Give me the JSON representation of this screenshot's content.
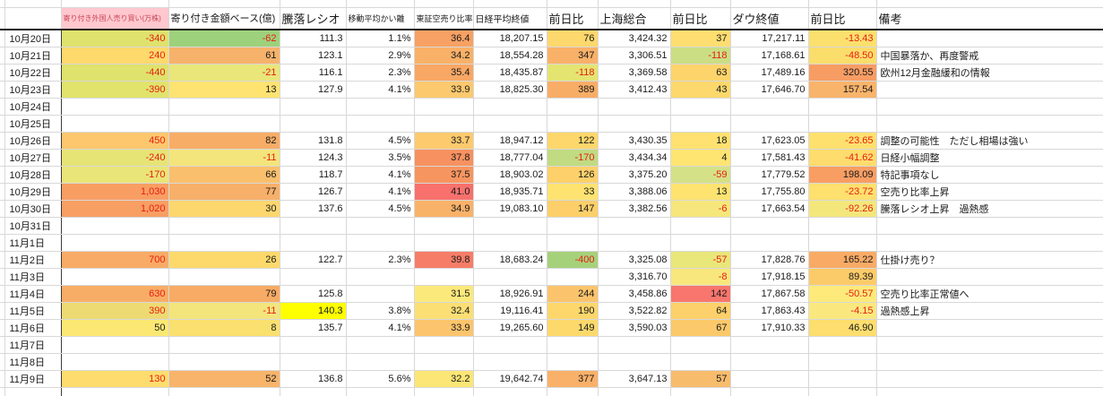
{
  "app": "spreadsheet-market-diary",
  "headers": {
    "foreign": "寄り付き外国人売り買い(万株)",
    "amount": "寄り付き金額ベース(億)",
    "ratio": "騰落レシオ",
    "ma": "移動平均かい離",
    "short": "東証空売り比率",
    "nikkei": "日経平均終値",
    "n_chg": "前日比",
    "shanghai": "上海総合",
    "s_chg": "前日比",
    "dow": "ダウ終値",
    "d_chg": "前日比",
    "remark": "備考"
  },
  "header_style": {
    "foreign_bg": "#ffc7ce",
    "foreign_fg": "#c84655"
  },
  "colors": {
    "grid": "#d8d8d8",
    "negative_text": "#e81d12",
    "highlight_yellow": "#ffff00"
  },
  "rows": [
    {
      "date": "10月20日",
      "cells": {
        "foreign": {
          "v": "-340",
          "bg": "#dfe26c",
          "fg": "#e81d12"
        },
        "amount": {
          "v": "-62",
          "bg": "#9ed17b",
          "fg": "#e81d12"
        },
        "ratio": {
          "v": "111.3"
        },
        "ma": {
          "v": "1.1%"
        },
        "short": {
          "v": "36.4",
          "bg": "#f8a164"
        },
        "nikkei": {
          "v": "18,207.15"
        },
        "n_chg": {
          "v": "76",
          "bg": "#fdd86c"
        },
        "shanghai": {
          "v": "3,424.32"
        },
        "s_chg": {
          "v": "37",
          "bg": "#fede70"
        },
        "dow": {
          "v": "17,217.11"
        },
        "d_chg": {
          "v": "-13.43",
          "bg": "#fbe06e",
          "fg": "#e81d12"
        },
        "remark": {
          "v": ""
        }
      }
    },
    {
      "date": "10月21日",
      "cells": {
        "foreign": {
          "v": "240",
          "bg": "#fed96c",
          "fg": "#e81d12"
        },
        "amount": {
          "v": "61",
          "bg": "#f6b26b"
        },
        "ratio": {
          "v": "123.1"
        },
        "ma": {
          "v": "2.9%"
        },
        "short": {
          "v": "34.2",
          "bg": "#f9b168"
        },
        "nikkei": {
          "v": "18,554.28"
        },
        "n_chg": {
          "v": "347",
          "bg": "#f9b169"
        },
        "shanghai": {
          "v": "3,306.51"
        },
        "s_chg": {
          "v": "-118",
          "bg": "#cbde84",
          "fg": "#e81d12"
        },
        "dow": {
          "v": "17,168.61"
        },
        "d_chg": {
          "v": "-48.50",
          "bg": "#fbdd6c",
          "fg": "#e81d12"
        },
        "remark": {
          "v": "中国暴落か、再度警戒"
        }
      }
    },
    {
      "date": "10月22日",
      "cells": {
        "foreign": {
          "v": "-440",
          "bg": "#dfe26c",
          "fg": "#e81d12"
        },
        "amount": {
          "v": "-21",
          "bg": "#e9e67a",
          "fg": "#e81d12"
        },
        "ratio": {
          "v": "116.1"
        },
        "ma": {
          "v": "2.3%"
        },
        "short": {
          "v": "35.4",
          "bg": "#f8a765"
        },
        "nikkei": {
          "v": "18,435.87"
        },
        "n_chg": {
          "v": "-118",
          "bg": "#e4e471",
          "fg": "#e81d12"
        },
        "shanghai": {
          "v": "3,369.58"
        },
        "s_chg": {
          "v": "63",
          "bg": "#fdd46b"
        },
        "dow": {
          "v": "17,489.16"
        },
        "d_chg": {
          "v": "320.55",
          "bg": "#f79d64"
        },
        "remark": {
          "v": "欧州12月金融緩和の情報"
        }
      }
    },
    {
      "date": "10月23日",
      "cells": {
        "foreign": {
          "v": "-390",
          "bg": "#e1e36d",
          "fg": "#e81d12"
        },
        "amount": {
          "v": "13",
          "bg": "#fee371"
        },
        "ratio": {
          "v": "127.9"
        },
        "ma": {
          "v": "4.1%"
        },
        "short": {
          "v": "33.9",
          "bg": "#fcc96e"
        },
        "nikkei": {
          "v": "18,825.30"
        },
        "n_chg": {
          "v": "389",
          "bg": "#f8ad67"
        },
        "shanghai": {
          "v": "3,412.43"
        },
        "s_chg": {
          "v": "43",
          "bg": "#fdd86c"
        },
        "dow": {
          "v": "17,646.70"
        },
        "d_chg": {
          "v": "157.54",
          "bg": "#f9b46b"
        },
        "remark": {
          "v": ""
        }
      }
    },
    {
      "date": "10月24日"
    },
    {
      "date": "10月25日"
    },
    {
      "date": "10月26日",
      "cells": {
        "foreign": {
          "v": "450",
          "bg": "#fdc76d",
          "fg": "#e81d12"
        },
        "amount": {
          "v": "82",
          "bg": "#f7ad66"
        },
        "ratio": {
          "v": "131.8"
        },
        "ma": {
          "v": "4.5%"
        },
        "short": {
          "v": "33.7",
          "bg": "#fdca6e"
        },
        "nikkei": {
          "v": "18,947.12"
        },
        "n_chg": {
          "v": "122",
          "bg": "#fdd76b"
        },
        "shanghai": {
          "v": "3,430.35"
        },
        "s_chg": {
          "v": "18",
          "bg": "#fee170"
        },
        "dow": {
          "v": "17,623.05"
        },
        "d_chg": {
          "v": "-23.65",
          "bg": "#fee06e",
          "fg": "#e81d12"
        },
        "remark": {
          "v": "調整の可能性　ただし相場は強い"
        }
      }
    },
    {
      "date": "10月27日",
      "cells": {
        "foreign": {
          "v": "-240",
          "bg": "#e7e476",
          "fg": "#e81d12"
        },
        "amount": {
          "v": "-11",
          "bg": "#f3e57b",
          "fg": "#e81d12"
        },
        "ratio": {
          "v": "124.3"
        },
        "ma": {
          "v": "3.5%"
        },
        "short": {
          "v": "37.8",
          "bg": "#f79160"
        },
        "nikkei": {
          "v": "18,777.04"
        },
        "n_chg": {
          "v": "-170",
          "bg": "#c0db81",
          "fg": "#e81d12"
        },
        "shanghai": {
          "v": "3,434.34"
        },
        "s_chg": {
          "v": "4",
          "bg": "#fee572"
        },
        "dow": {
          "v": "17,581.43"
        },
        "d_chg": {
          "v": "-41.62",
          "bg": "#fedc6d",
          "fg": "#e81d12"
        },
        "remark": {
          "v": "日経小幅調整"
        }
      }
    },
    {
      "date": "10月28日",
      "cells": {
        "foreign": {
          "v": "-170",
          "bg": "#eae577",
          "fg": "#e81d12"
        },
        "amount": {
          "v": "66",
          "bg": "#fabf6c"
        },
        "ratio": {
          "v": "118.7"
        },
        "ma": {
          "v": "4.1%"
        },
        "short": {
          "v": "37.5",
          "bg": "#f79560"
        },
        "nikkei": {
          "v": "18,903.02"
        },
        "n_chg": {
          "v": "126",
          "bg": "#fdd06a"
        },
        "shanghai": {
          "v": "3,375.20"
        },
        "s_chg": {
          "v": "-59",
          "bg": "#d5e187",
          "fg": "#e81d12"
        },
        "dow": {
          "v": "17,779.52"
        },
        "d_chg": {
          "v": "198.09",
          "bg": "#f89e63"
        },
        "remark": {
          "v": "特記事項なし"
        }
      }
    },
    {
      "date": "10月29日",
      "cells": {
        "foreign": {
          "v": "1,030",
          "bg": "#f89e63",
          "fg": "#e81d12"
        },
        "amount": {
          "v": "77",
          "bg": "#f7b069"
        },
        "ratio": {
          "v": "126.7"
        },
        "ma": {
          "v": "4.1%"
        },
        "short": {
          "v": "41.0",
          "bg": "#f8716c"
        },
        "nikkei": {
          "v": "18,935.71"
        },
        "n_chg": {
          "v": "33",
          "bg": "#fee371"
        },
        "shanghai": {
          "v": "3,388.06"
        },
        "s_chg": {
          "v": "13",
          "bg": "#fee371"
        },
        "dow": {
          "v": "17,755.80"
        },
        "d_chg": {
          "v": "-23.72",
          "bg": "#fee06e",
          "fg": "#e81d12"
        },
        "remark": {
          "v": "空売り比率上昇"
        }
      }
    },
    {
      "date": "10月30日",
      "cells": {
        "foreign": {
          "v": "1,020",
          "bg": "#f89f64",
          "fg": "#e81d12"
        },
        "amount": {
          "v": "30",
          "bg": "#fcd76e"
        },
        "ratio": {
          "v": "137.6"
        },
        "ma": {
          "v": "4.5%"
        },
        "short": {
          "v": "34.9",
          "bg": "#f9b269"
        },
        "nikkei": {
          "v": "19,083.10"
        },
        "n_chg": {
          "v": "147",
          "bg": "#fccf6a"
        },
        "shanghai": {
          "v": "3,382.56"
        },
        "s_chg": {
          "v": "-6",
          "bg": "#f6e77c",
          "fg": "#e81d12"
        },
        "dow": {
          "v": "17,663.54"
        },
        "d_chg": {
          "v": "-92.26",
          "bg": "#f3e77c",
          "fg": "#e81d12"
        },
        "remark": {
          "v": "騰落レシオ上昇　過熱感"
        }
      }
    },
    {
      "date": "10月31日"
    },
    {
      "date": "11月1日"
    },
    {
      "date": "11月2日",
      "cells": {
        "foreign": {
          "v": "700",
          "bg": "#f8ab66",
          "fg": "#e81d12"
        },
        "amount": {
          "v": "26",
          "bg": "#fdd96b"
        },
        "ratio": {
          "v": "122.7"
        },
        "ma": {
          "v": "2.3%"
        },
        "short": {
          "v": "39.8",
          "bg": "#f67d68"
        },
        "nikkei": {
          "v": "18,683.24"
        },
        "n_chg": {
          "v": "-400",
          "bg": "#a6d17b",
          "fg": "#e81d12"
        },
        "shanghai": {
          "v": "3,325.08"
        },
        "s_chg": {
          "v": "-57",
          "bg": "#e9e67a",
          "fg": "#e81d12"
        },
        "dow": {
          "v": "17,828.76"
        },
        "d_chg": {
          "v": "165.22",
          "bg": "#f9ab66"
        },
        "remark": {
          "v": "仕掛け売り？"
        }
      }
    },
    {
      "date": "11月3日",
      "cells": {
        "shanghai": {
          "v": "3,316.70"
        },
        "s_chg": {
          "v": "-8",
          "bg": "#f8e77d",
          "fg": "#e81d12"
        },
        "dow": {
          "v": "17,918.15"
        },
        "d_chg": {
          "v": "89.39",
          "bg": "#fccb69"
        }
      }
    },
    {
      "date": "11月4日",
      "cells": {
        "foreign": {
          "v": "630",
          "bg": "#f8ad67",
          "fg": "#e81d12"
        },
        "amount": {
          "v": "79",
          "bg": "#f7ab64"
        },
        "ratio": {
          "v": "125.8"
        },
        "short": {
          "v": "31.5",
          "bg": "#fce97b"
        },
        "nikkei": {
          "v": "18,926.91"
        },
        "n_chg": {
          "v": "244",
          "bg": "#fbc46c"
        },
        "shanghai": {
          "v": "3,458.86"
        },
        "s_chg": {
          "v": "142",
          "bg": "#f8766d"
        },
        "dow": {
          "v": "17,867.58"
        },
        "d_chg": {
          "v": "-50.57",
          "bg": "#fdea7a",
          "fg": "#e81d12"
        },
        "remark": {
          "v": "空売り比率正常値へ"
        }
      }
    },
    {
      "date": "11月5日",
      "cells": {
        "foreign": {
          "v": "390",
          "bg": "#eeda72",
          "fg": "#e81d12"
        },
        "amount": {
          "v": "-11",
          "bg": "#f3e57b",
          "fg": "#e81d12"
        },
        "ratio": {
          "v": "140.3",
          "bg": "#ffff00"
        },
        "ma": {
          "v": "3.8%"
        },
        "short": {
          "v": "32.4",
          "bg": "#fbdf75"
        },
        "nikkei": {
          "v": "19,116.41"
        },
        "n_chg": {
          "v": "190",
          "bg": "#fdd76b"
        },
        "shanghai": {
          "v": "3,522.82"
        },
        "s_chg": {
          "v": "64",
          "bg": "#fcd06a"
        },
        "dow": {
          "v": "17,863.43"
        },
        "d_chg": {
          "v": "-4.15",
          "bg": "#fae87e",
          "fg": "#e81d12"
        },
        "remark": {
          "v": "過熱感上昇"
        }
      }
    },
    {
      "date": "11月6日",
      "cells": {
        "foreign": {
          "v": "50",
          "bg": "#fbe873"
        },
        "amount": {
          "v": "8",
          "bg": "#fae06f"
        },
        "ratio": {
          "v": "135.7"
        },
        "ma": {
          "v": "4.1%"
        },
        "short": {
          "v": "33.9",
          "bg": "#fcc46c"
        },
        "nikkei": {
          "v": "19,265.60"
        },
        "n_chg": {
          "v": "149",
          "bg": "#fdd96c"
        },
        "shanghai": {
          "v": "3,590.03"
        },
        "s_chg": {
          "v": "67",
          "bg": "#fbc96a"
        },
        "dow": {
          "v": "17,910.33"
        },
        "d_chg": {
          "v": "46.90",
          "bg": "#fdde6e"
        },
        "remark": {
          "v": ""
        }
      }
    },
    {
      "date": "11月7日"
    },
    {
      "date": "11月8日"
    },
    {
      "date": "11月9日",
      "cells": {
        "foreign": {
          "v": "130",
          "bg": "#fedd6e",
          "fg": "#e81d12"
        },
        "amount": {
          "v": "52",
          "bg": "#f7b46a"
        },
        "ratio": {
          "v": "136.8"
        },
        "ma": {
          "v": "5.6%"
        },
        "short": {
          "v": "32.2",
          "bg": "#fce676"
        },
        "nikkei": {
          "v": "19,642.74"
        },
        "n_chg": {
          "v": "377",
          "bg": "#f9b169"
        },
        "shanghai": {
          "v": "3,647.13"
        },
        "s_chg": {
          "v": "57",
          "bg": "#f8bc6d"
        },
        "remark": {
          "v": ""
        }
      }
    }
  ]
}
